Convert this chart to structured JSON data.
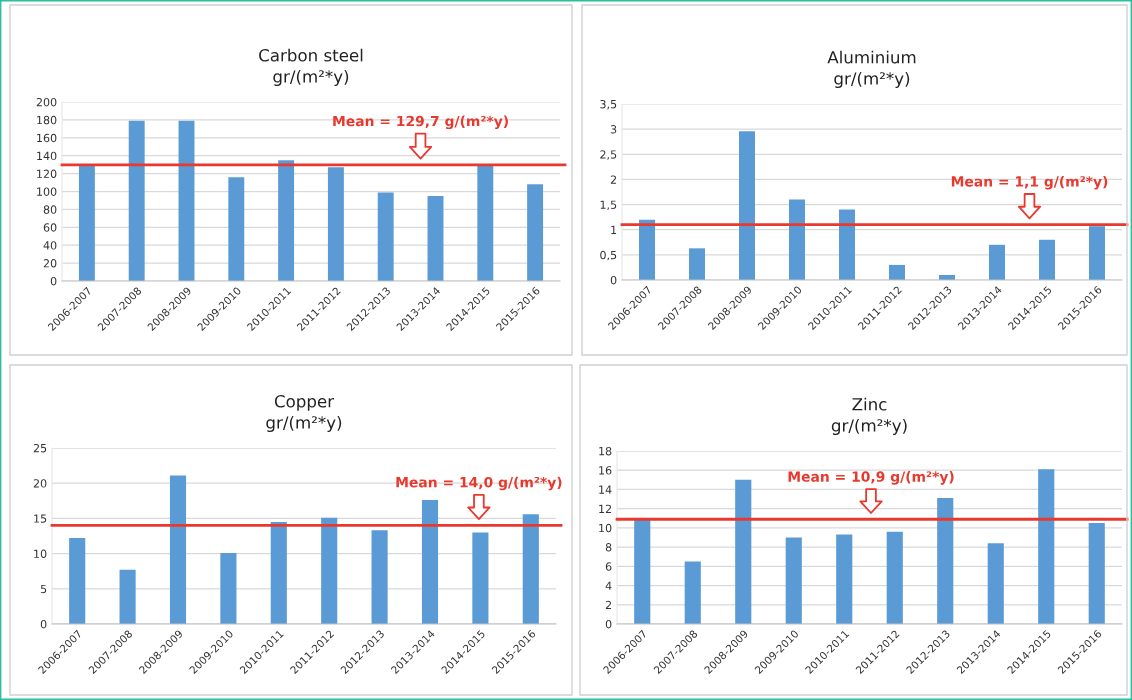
{
  "chart_data": [
    {
      "type": "bar",
      "title": "Carbon steel",
      "subtitle": "gr/(m²*y)",
      "categories": [
        "2006-2007",
        "2007-2008",
        "2008-2009",
        "2009-2010",
        "2010-2011",
        "2011-2012",
        "2012-2013",
        "2013-2014",
        "2014-2015",
        "2015-2016"
      ],
      "values": [
        129,
        179,
        179,
        116,
        135,
        127,
        99,
        95,
        130,
        108
      ],
      "color": "#5b9bd5",
      "ylim": [
        0,
        200
      ],
      "yticks": [
        0,
        20,
        40,
        60,
        80,
        100,
        120,
        140,
        160,
        180,
        200
      ],
      "grid": "y",
      "ref_lines": [
        {
          "axis": "y",
          "value": 129.7,
          "label": "Mean = 129,7 g/(m²*y)",
          "color": "#e8392f"
        }
      ]
    },
    {
      "type": "bar",
      "title": "Aluminium",
      "subtitle": "gr/(m²*y)",
      "categories": [
        "2006-2007",
        "2007-2008",
        "2008-2009",
        "2009-2010",
        "2010-2011",
        "2011-2012",
        "2012-2013",
        "2013-2014",
        "2014-2015",
        "2015-2016"
      ],
      "values": [
        1.2,
        0.63,
        2.96,
        1.6,
        1.4,
        0.3,
        0.1,
        0.7,
        0.8,
        1.07
      ],
      "color": "#5b9bd5",
      "ylim": [
        0,
        3.5
      ],
      "yticks": [
        0,
        {
          "value": 0.5,
          "label": "0,5"
        },
        1,
        {
          "value": 1.5,
          "label": "1,5"
        },
        2,
        {
          "value": 2.5,
          "label": "2,5"
        },
        3,
        {
          "value": 3.5,
          "label": "3,5"
        }
      ],
      "grid": "y",
      "ref_lines": [
        {
          "axis": "y",
          "value": 1.1,
          "label": "Mean = 1,1 g/(m²*y)",
          "color": "#e8392f"
        }
      ]
    },
    {
      "type": "bar",
      "title": "Copper",
      "subtitle": "gr/(m²*y)",
      "categories": [
        "2006-2007",
        "2007-2008",
        "2008-2009",
        "2009-2010",
        "2010-2011",
        "2011-2012",
        "2012-2013",
        "2013-2014",
        "2014-2015",
        "2015-2016"
      ],
      "values": [
        12.2,
        7.7,
        21.1,
        10.1,
        14.5,
        15.1,
        13.3,
        17.6,
        13.0,
        15.6
      ],
      "color": "#5b9bd5",
      "ylim": [
        0,
        25
      ],
      "yticks": [
        0,
        5,
        10,
        15,
        20,
        25
      ],
      "grid": "y",
      "ref_lines": [
        {
          "axis": "y",
          "value": 14.0,
          "label": "Mean = 14,0 g/(m²*y)",
          "color": "#e8392f"
        }
      ]
    },
    {
      "type": "bar",
      "title": "Zinc",
      "subtitle": "gr/(m²*y)",
      "categories": [
        "2006-2007",
        "2007-2008",
        "2008-2009",
        "2009-2010",
        "2010-2011",
        "2011-2012",
        "2012-2013",
        "2013-2014",
        "2014-2015",
        "2015-2016"
      ],
      "values": [
        11.0,
        6.5,
        15.0,
        9.0,
        9.3,
        9.6,
        13.1,
        8.4,
        16.1,
        10.5
      ],
      "color": "#5b9bd5",
      "ylim": [
        0,
        18
      ],
      "yticks": [
        0,
        2,
        4,
        6,
        8,
        10,
        12,
        14,
        16,
        18
      ],
      "grid": "y",
      "ref_lines": [
        {
          "axis": "y",
          "value": 10.9,
          "label": "Mean = 10,9 g/(m²*y)",
          "color": "#e8392f"
        }
      ]
    }
  ]
}
